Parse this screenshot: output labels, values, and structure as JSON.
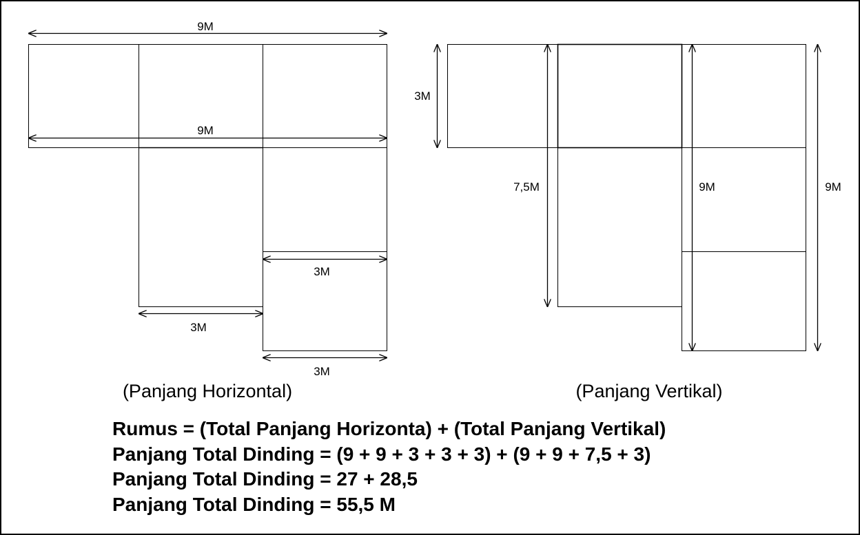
{
  "diagram": {
    "horizontal": {
      "caption": "(Panjang Horizontal)",
      "labels": {
        "top": "9M",
        "middle": "9M",
        "right_inner": "3M",
        "bottom_left": "3M",
        "bottom_right": "3M"
      }
    },
    "vertical": {
      "caption": "(Panjang Vertikal)",
      "labels": {
        "left_short": "3M",
        "left_long": "7,5M",
        "inner": "9M",
        "outer": "9M"
      }
    }
  },
  "formula": {
    "line1": "Rumus = (Total Panjang Horizonta) + (Total Panjang Vertikal)",
    "line2": "Panjang Total Dinding = (9 + 9 + 3 + 3 + 3) + (9 + 9 + 7,5 + 3)",
    "line3": "Panjang Total Dinding = 27 + 28,5",
    "line4": "Panjang Total Dinding = 55,5 M"
  }
}
